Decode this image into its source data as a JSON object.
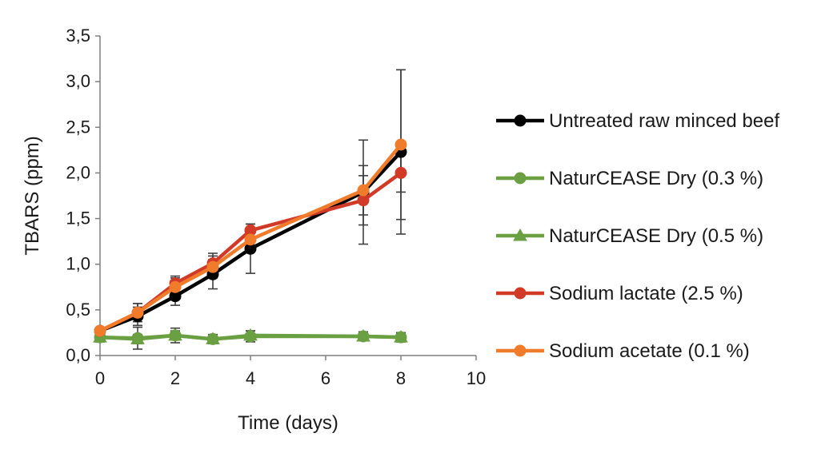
{
  "chart_data": {
    "type": "line",
    "title": "",
    "xlabel": "Time (days)",
    "ylabel": "TBARS (ppm)",
    "xlim": [
      0,
      10
    ],
    "ylim": [
      0,
      3.5
    ],
    "x_ticks": [
      "0",
      "2",
      "4",
      "6",
      "8",
      "10"
    ],
    "y_ticks": [
      "0,0",
      "0,5",
      "1,0",
      "1,5",
      "2,0",
      "2,5",
      "3,0",
      "3,5"
    ],
    "x": [
      0,
      1,
      2,
      3,
      4,
      7,
      8
    ],
    "legend_position": "right",
    "grid": false,
    "series": [
      {
        "name": "Untreated raw minced beef",
        "color": "#000000",
        "marker": "circle",
        "values": [
          0.27,
          0.43,
          0.65,
          0.89,
          1.17,
          1.79,
          2.23
        ],
        "errors": [
          0.02,
          0.1,
          0.1,
          0.16,
          0.27,
          0.57,
          0.9
        ]
      },
      {
        "name": "NaturCEASE Dry (0.3 %)",
        "color": "#6aa042",
        "marker": "circle",
        "values": [
          0.2,
          0.19,
          0.22,
          0.18,
          0.21,
          0.21,
          0.2
        ],
        "errors": [
          0.05,
          0.12,
          0.08,
          0.05,
          0.06,
          0.05,
          0.05
        ]
      },
      {
        "name": "NaturCEASE Dry (0.5 %)",
        "color": "#6aa042",
        "marker": "triangle",
        "values": [
          0.2,
          0.18,
          0.22,
          0.18,
          0.22,
          0.21,
          0.2
        ],
        "errors": [
          0.05,
          0.05,
          0.05,
          0.05,
          0.05,
          0.05,
          0.05
        ]
      },
      {
        "name": "Sodium lactate (2.5 %)",
        "color": "#d23a28",
        "marker": "circle",
        "values": [
          0.27,
          0.47,
          0.79,
          1.01,
          1.37,
          1.7,
          2.0
        ],
        "errors": [
          0.02,
          0.1,
          0.08,
          0.11,
          0.07,
          0.27,
          0.21
        ]
      },
      {
        "name": "Sodium acetate (0.1 %)",
        "color": "#ef7b2b",
        "marker": "circle",
        "values": [
          0.27,
          0.47,
          0.75,
          0.97,
          1.27,
          1.81,
          2.31
        ],
        "errors": [
          0.02,
          0.1,
          0.1,
          0.12,
          0.12,
          0.27,
          0.82
        ]
      }
    ]
  }
}
